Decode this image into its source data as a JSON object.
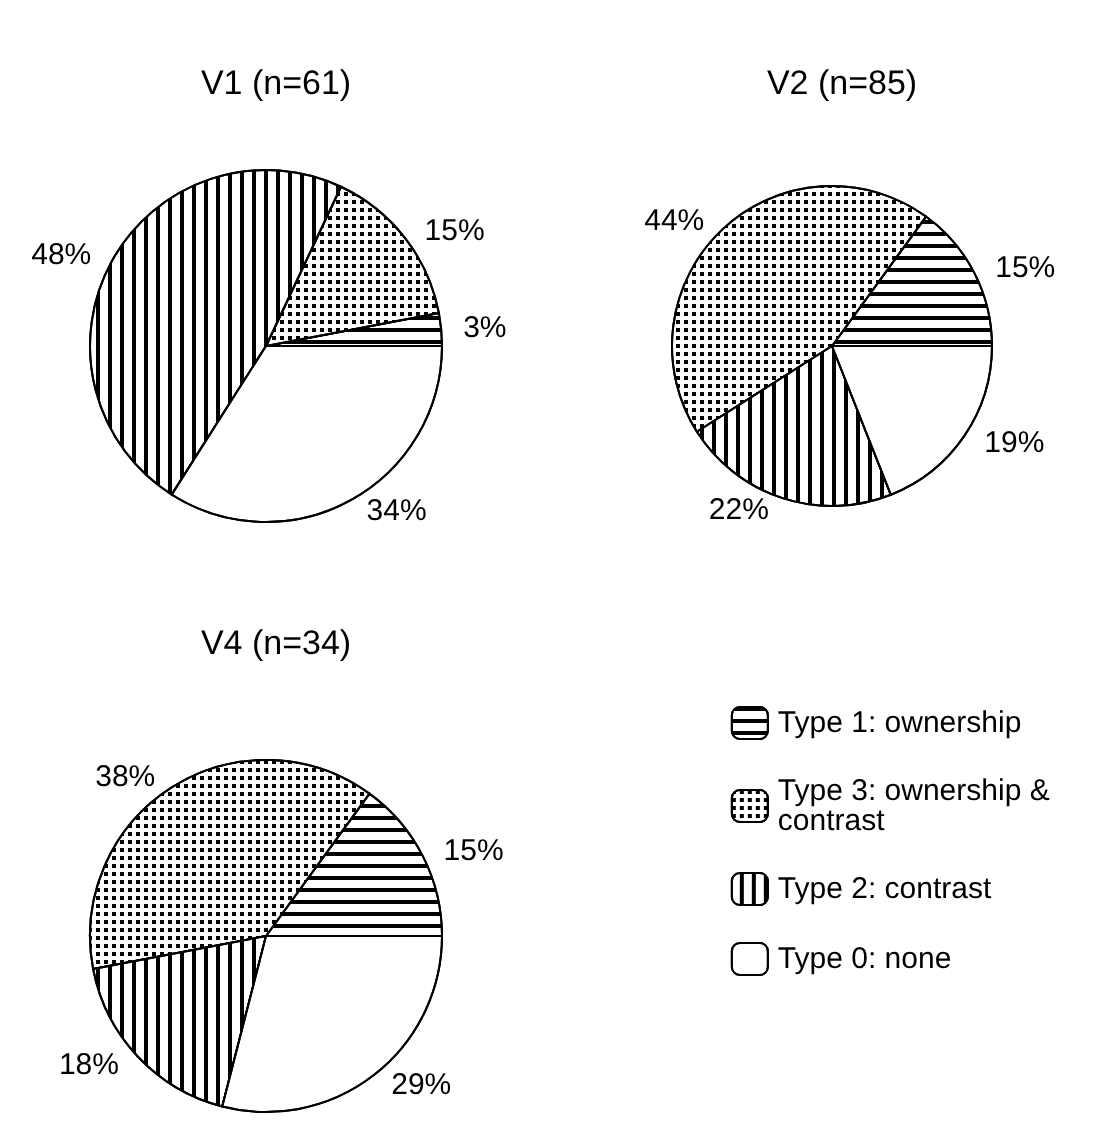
{
  "chart_data": [
    {
      "type": "pie",
      "title": "V1 (n=61)",
      "categories": [
        null,
        null,
        null,
        null
      ],
      "values": [
        3,
        15,
        48,
        34
      ],
      "value_labels": [
        "3%",
        "15%",
        "48%",
        "34%"
      ],
      "colors": [
        "#ffffff",
        "#ffffff",
        "#ffffff",
        "#ffffff"
      ],
      "legend": false
    },
    {
      "type": "pie",
      "title": "V2 (n=85)",
      "categories": [
        null,
        null,
        null,
        null
      ],
      "values": [
        15,
        44,
        22,
        19
      ],
      "value_labels": [
        "15%",
        "44%",
        "22%",
        "19%"
      ],
      "colors": [
        "#ffffff",
        "#ffffff",
        "#ffffff",
        "#ffffff"
      ],
      "legend": false
    },
    {
      "type": "pie",
      "title": "V4 (n=34)",
      "categories": [
        "Type 1: ownership",
        "Type 3: ownership & contrast",
        "Type 2: contrast",
        "Type 0: none"
      ],
      "values": [
        15,
        38,
        18,
        29
      ],
      "value_labels": [
        "15%",
        "38%",
        "18%",
        "29%"
      ],
      "colors": [
        "#ffffff",
        "#ffffff",
        "#ffffff",
        "#ffffff"
      ],
      "legend": "right"
    }
  ]
}
